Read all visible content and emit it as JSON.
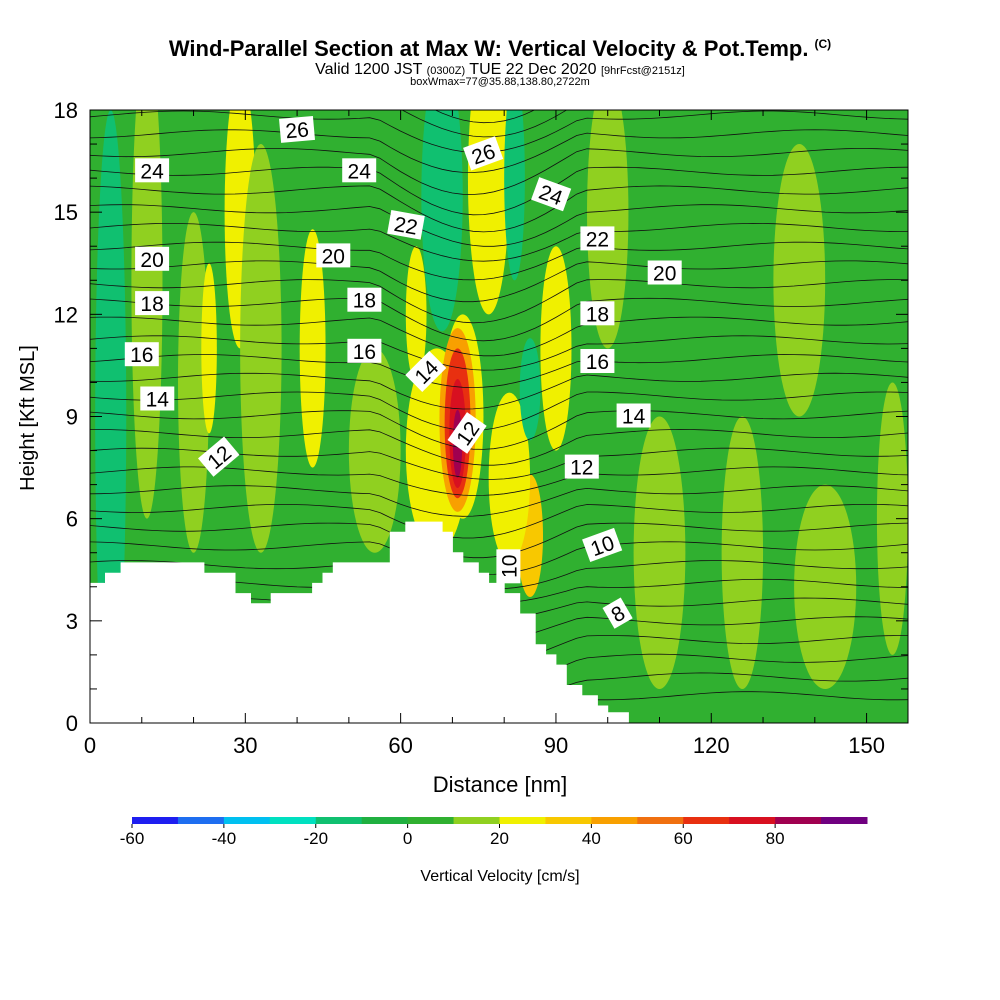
{
  "title": {
    "main": "Wind-Parallel Section at Max W: Vertical Velocity & Pot.Temp.",
    "copyright": "(C)",
    "valid_prefix": "Valid 1200 JST",
    "valid_utc": "(0300Z)",
    "valid_date": "TUE 22 Dec 2020",
    "valid_suffix": "[9hrFcst@2151z]",
    "box": "boxWmax=77@35.88,138.80,2722m"
  },
  "chart_data": {
    "type": "heatmap",
    "xlabel": "Distance [nm]",
    "ylabel": "Height [Kft MSL]",
    "xlim": [
      0,
      158
    ],
    "ylim": [
      0,
      18
    ],
    "x_ticks": [
      0,
      30,
      60,
      90,
      120,
      150
    ],
    "y_ticks": [
      0,
      3,
      6,
      9,
      12,
      15,
      18
    ],
    "colorbar": {
      "label": "Vertical Velocity [cm/s]",
      "tick_labels": [
        "-60",
        "-40",
        "-20",
        "0",
        "20",
        "40",
        "60",
        "80"
      ],
      "tick_values": [
        -60,
        -40,
        -20,
        0,
        20,
        40,
        60,
        80
      ],
      "bins": [
        -60,
        -50,
        -40,
        -30,
        -20,
        -10,
        0,
        10,
        20,
        30,
        40,
        50,
        60,
        70,
        80,
        90
      ],
      "colors": [
        "#1e1ef0",
        "#1e6ef0",
        "#00c0f0",
        "#00e0c0",
        "#10c070",
        "#20b040",
        "#30b030",
        "#90d020",
        "#f0f000",
        "#f8c800",
        "#f8a000",
        "#f07010",
        "#e83010",
        "#d81020",
        "#a00050",
        "#700080"
      ]
    },
    "terrain_kft": [
      [
        0,
        4.1
      ],
      [
        3,
        4.1
      ],
      [
        3,
        4.4
      ],
      [
        6,
        4.4
      ],
      [
        6,
        4.7
      ],
      [
        8,
        4.7
      ],
      [
        22,
        4.7
      ],
      [
        22,
        4.4
      ],
      [
        28,
        4.4
      ],
      [
        28,
        3.8
      ],
      [
        31,
        3.8
      ],
      [
        31,
        3.5
      ],
      [
        35,
        3.5
      ],
      [
        35,
        3.8
      ],
      [
        43,
        3.8
      ],
      [
        43,
        4.1
      ],
      [
        45,
        4.1
      ],
      [
        45,
        4.4
      ],
      [
        47,
        4.4
      ],
      [
        47,
        4.7
      ],
      [
        58,
        4.7
      ],
      [
        58,
        5.6
      ],
      [
        61,
        5.6
      ],
      [
        61,
        5.9
      ],
      [
        64,
        5.9
      ],
      [
        68,
        5.9
      ],
      [
        68,
        5.6
      ],
      [
        70,
        5.6
      ],
      [
        70,
        5.0
      ],
      [
        72,
        5.0
      ],
      [
        72,
        4.7
      ],
      [
        75,
        4.7
      ],
      [
        75,
        4.4
      ],
      [
        77,
        4.4
      ],
      [
        77,
        4.1
      ],
      [
        80,
        4.1
      ],
      [
        80,
        3.8
      ],
      [
        83,
        3.8
      ],
      [
        83,
        3.2
      ],
      [
        86,
        3.2
      ],
      [
        86,
        2.3
      ],
      [
        88,
        2.3
      ],
      [
        88,
        2.0
      ],
      [
        90,
        2.0
      ],
      [
        90,
        1.7
      ],
      [
        92,
        1.7
      ],
      [
        92,
        1.1
      ],
      [
        95,
        1.1
      ],
      [
        95,
        0.8
      ],
      [
        98,
        0.8
      ],
      [
        98,
        0.5
      ],
      [
        100,
        0.5
      ],
      [
        100,
        0.3
      ],
      [
        104,
        0.3
      ],
      [
        104,
        0
      ],
      [
        158,
        0
      ]
    ],
    "fields": [
      {
        "x": 4,
        "y": 9,
        "rx": 3,
        "ry": 9,
        "w": -20
      },
      {
        "x": 11,
        "y": 13,
        "rx": 3,
        "ry": 7,
        "w": 10
      },
      {
        "x": 20,
        "y": 10,
        "rx": 3,
        "ry": 5,
        "w": 10
      },
      {
        "x": 23,
        "y": 11,
        "rx": 1.5,
        "ry": 2.5,
        "w": 20
      },
      {
        "x": 29,
        "y": 15,
        "rx": 3,
        "ry": 4,
        "w": 20
      },
      {
        "x": 33,
        "y": 11,
        "rx": 4,
        "ry": 6,
        "w": 10
      },
      {
        "x": 43,
        "y": 11,
        "rx": 2.5,
        "ry": 3.5,
        "w": 20
      },
      {
        "x": 55,
        "y": 8,
        "rx": 5,
        "ry": 3,
        "w": 10
      },
      {
        "x": 63,
        "y": 12,
        "rx": 2,
        "ry": 2,
        "w": 20
      },
      {
        "x": 67,
        "y": 8,
        "rx": 6,
        "ry": 3,
        "w": 20
      },
      {
        "x": 68,
        "y": 15.5,
        "rx": 4,
        "ry": 4,
        "w": -20
      },
      {
        "x": 77,
        "y": 16,
        "rx": 4,
        "ry": 4,
        "w": 20
      },
      {
        "x": 82,
        "y": 16,
        "rx": 2,
        "ry": 3,
        "w": -20
      },
      {
        "x": 85,
        "y": 5.5,
        "rx": 2.5,
        "ry": 1.8,
        "w": 30
      },
      {
        "x": 81,
        "y": 7.2,
        "rx": 4,
        "ry": 2.5,
        "w": 20
      },
      {
        "x": 90,
        "y": 11,
        "rx": 3,
        "ry": 3,
        "w": 20
      },
      {
        "x": 85,
        "y": 9.8,
        "rx": 2,
        "ry": 1.5,
        "w": -20
      },
      {
        "x": 100,
        "y": 15,
        "rx": 4,
        "ry": 4,
        "w": 10
      },
      {
        "x": 110,
        "y": 5,
        "rx": 5,
        "ry": 4,
        "w": 10
      },
      {
        "x": 126,
        "y": 5,
        "rx": 4,
        "ry": 4,
        "w": 10
      },
      {
        "x": 137,
        "y": 13,
        "rx": 5,
        "ry": 4,
        "w": 10
      },
      {
        "x": 142,
        "y": 4,
        "rx": 6,
        "ry": 3,
        "w": 10
      },
      {
        "x": 155,
        "y": 6,
        "rx": 3,
        "ry": 4,
        "w": 10
      },
      {
        "x": 72,
        "y": 9,
        "rx": 4,
        "ry": 3,
        "w": 20
      },
      {
        "x": 71,
        "y": 8.9,
        "rx": 3.5,
        "ry": 2.7,
        "w": 40
      },
      {
        "x": 71,
        "y": 8.8,
        "rx": 2.5,
        "ry": 2.2,
        "w": 60
      },
      {
        "x": 71,
        "y": 8.5,
        "rx": 1.6,
        "ry": 1.6,
        "w": 70
      },
      {
        "x": 71,
        "y": 8.2,
        "rx": 0.9,
        "ry": 1,
        "w": 80
      }
    ],
    "theta_labels": [
      {
        "text": "26",
        "x": 40,
        "y": 17.4,
        "angle": -5
      },
      {
        "text": "24",
        "x": 12,
        "y": 16.2,
        "angle": 0
      },
      {
        "text": "24",
        "x": 52,
        "y": 16.2,
        "angle": 0
      },
      {
        "text": "26",
        "x": 76,
        "y": 16.7,
        "angle": -20
      },
      {
        "text": "24",
        "x": 89,
        "y": 15.5,
        "angle": 20
      },
      {
        "text": "22",
        "x": 61,
        "y": 14.6,
        "angle": 10
      },
      {
        "text": "22",
        "x": 98,
        "y": 14.2,
        "angle": 0
      },
      {
        "text": "20",
        "x": 12,
        "y": 13.6,
        "angle": 0
      },
      {
        "text": "20",
        "x": 47,
        "y": 13.7,
        "angle": 0
      },
      {
        "text": "20",
        "x": 111,
        "y": 13.2,
        "angle": 0
      },
      {
        "text": "18",
        "x": 12,
        "y": 12.3,
        "angle": 0
      },
      {
        "text": "18",
        "x": 53,
        "y": 12.4,
        "angle": 0
      },
      {
        "text": "18",
        "x": 98,
        "y": 12.0,
        "angle": 0
      },
      {
        "text": "16",
        "x": 10,
        "y": 10.8,
        "angle": 0
      },
      {
        "text": "16",
        "x": 53,
        "y": 10.9,
        "angle": 0
      },
      {
        "text": "16",
        "x": 98,
        "y": 10.6,
        "angle": 0
      },
      {
        "text": "14",
        "x": 65,
        "y": 10.3,
        "angle": -45
      },
      {
        "text": "14",
        "x": 13,
        "y": 9.5,
        "angle": 0
      },
      {
        "text": "14",
        "x": 105,
        "y": 9.0,
        "angle": 0
      },
      {
        "text": "12",
        "x": 25,
        "y": 7.8,
        "angle": -40
      },
      {
        "text": "12",
        "x": 73,
        "y": 8.5,
        "angle": -55
      },
      {
        "text": "12",
        "x": 95,
        "y": 7.5,
        "angle": 0
      },
      {
        "text": "10",
        "x": 81,
        "y": 4.6,
        "angle": -90
      },
      {
        "text": "10",
        "x": 99,
        "y": 5.2,
        "angle": -20
      },
      {
        "text": "8",
        "x": 102,
        "y": 3.2,
        "angle": -30
      }
    ]
  }
}
